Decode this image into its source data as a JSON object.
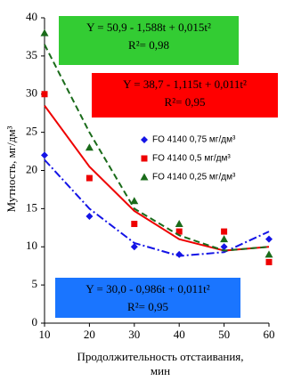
{
  "chart_data": {
    "type": "scatter",
    "ylabel": "Мутность, мг/дм³",
    "xlabel": [
      "Продолжительность отстаивания,",
      "мин"
    ],
    "x": [
      10,
      20,
      30,
      40,
      50,
      60
    ],
    "xlim": [
      10,
      60
    ],
    "xticks": [
      10,
      20,
      30,
      40,
      50,
      60
    ],
    "ylim": [
      0,
      40
    ],
    "yticks": [
      0,
      5,
      10,
      15,
      20,
      25,
      30,
      35,
      40
    ],
    "series": [
      {
        "name": "FO 4140 0,75 мг/дм³",
        "color": "#1414e6",
        "marker": "diamond",
        "dash": "9 3 2 3",
        "values": [
          22,
          14,
          10,
          9,
          10,
          11
        ],
        "trend": [
          21.4,
          15,
          10.5,
          8.8,
          9.3,
          12
        ]
      },
      {
        "name": "FO 4140 0,5 мг/дм³",
        "color": "#ee0000",
        "marker": "square",
        "dash": "none",
        "values": [
          30,
          19,
          13,
          12,
          12,
          8
        ],
        "trend": [
          28.5,
          20.5,
          14.7,
          11,
          9.5,
          10
        ]
      },
      {
        "name": "FO 4140 0,25 мг/дм³",
        "color": "#1a6b1a",
        "marker": "triangle",
        "dash": "7 4",
        "values": [
          38,
          23,
          16,
          13,
          11,
          9
        ],
        "trend": [
          36.5,
          25,
          15,
          11.5,
          9.5,
          10
        ]
      }
    ],
    "annotations": [
      {
        "lines": [
          "Y = 50,9 - 1,588t + 0,015t²",
          "R²= 0,98"
        ],
        "color": "#33cc33"
      },
      {
        "lines": [
          "Y = 38,7 - 1,115t + 0,011t²",
          "R²= 0,95"
        ],
        "color": "#ff0000"
      },
      {
        "lines": [
          "Y = 30,0 - 0,986t + 0,011t²",
          "R²= 0,95"
        ],
        "color": "#1a75ff"
      }
    ]
  }
}
